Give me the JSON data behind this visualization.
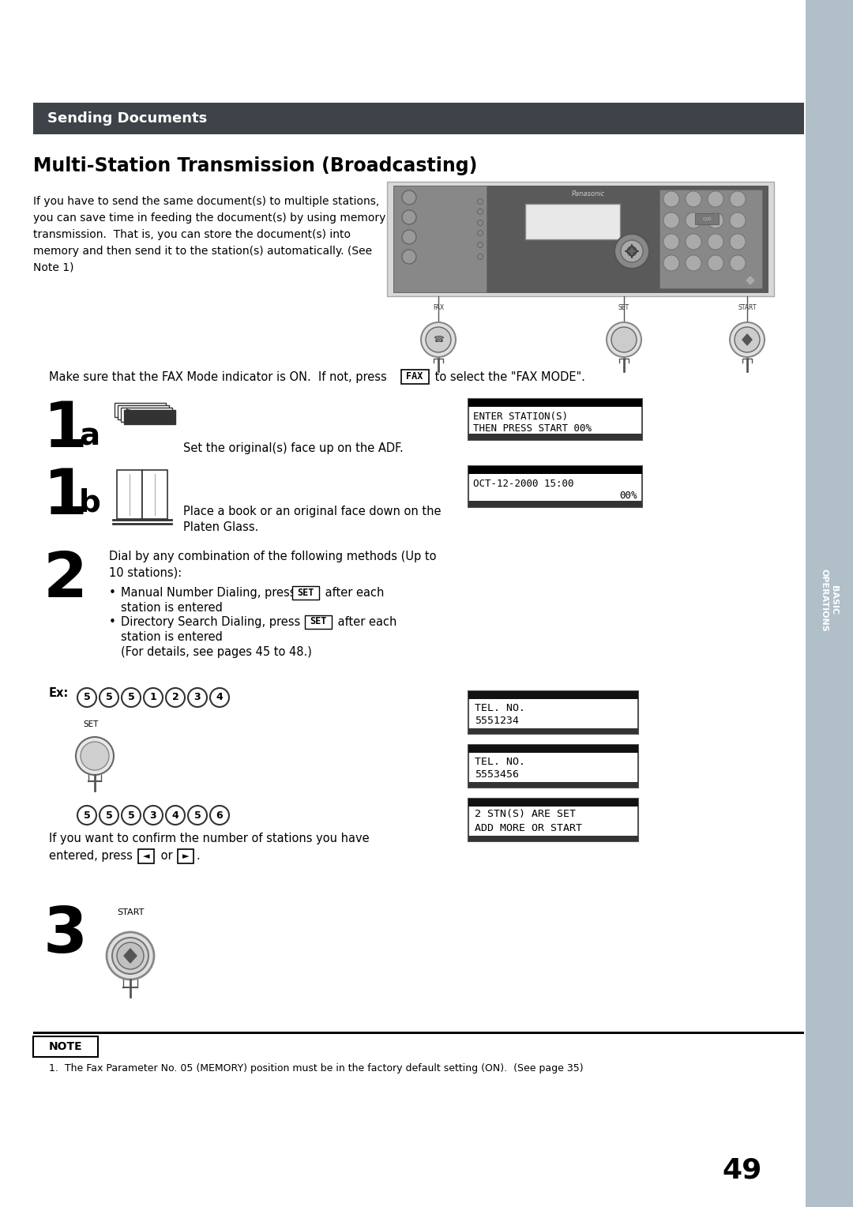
{
  "page_bg": "#ffffff",
  "sidebar_color": "#b0bfc8",
  "header_bar_color": "#3d4349",
  "header_text": "Sending Documents",
  "header_text_color": "#ffffff",
  "title": "Multi-Station Transmission (Broadcasting)",
  "body_text_color": "#000000",
  "page_number": "49",
  "sidebar_text": "BASIC\nOPERATIONS",
  "sidebar_text_color": "#ffffff",
  "intro_lines": [
    "If you have to send the same document(s) to multiple stations,",
    "you can save time in feeding the document(s) by using memory",
    "transmission.  That is, you can store the document(s) into",
    "memory and then send it to the station(s) automatically. (See",
    "Note 1)"
  ]
}
